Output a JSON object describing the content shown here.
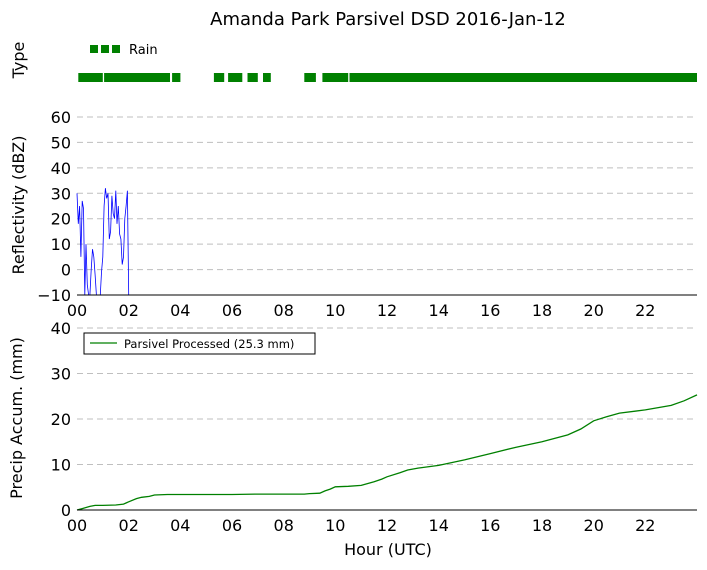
{
  "title": "Amanda Park Parsivel DSD 2016-Jan-12",
  "colors": {
    "rain": "#008000",
    "reflectivity": "#0000ff",
    "accum": "#008000",
    "grid": "#bfbfbf"
  },
  "chart_data": [
    {
      "type": "timeline",
      "ylabel": "Type",
      "legend": {
        "label": "Rain",
        "placement": "top-left"
      },
      "x_range": [
        0,
        24
      ],
      "segments": [
        [
          0.05,
          1.0
        ],
        [
          1.05,
          3.6
        ],
        [
          3.68,
          4.0
        ],
        [
          5.3,
          5.7
        ],
        [
          5.85,
          6.4
        ],
        [
          6.6,
          7.0
        ],
        [
          7.2,
          7.5
        ],
        [
          8.8,
          9.25
        ],
        [
          9.5,
          10.5
        ],
        [
          10.55,
          24.0
        ]
      ]
    },
    {
      "type": "line",
      "ylabel": "Reflectivity (dBZ)",
      "x_range": [
        0,
        24
      ],
      "ylim": [
        -10,
        60
      ],
      "yticks": [
        -10,
        0,
        10,
        20,
        30,
        40,
        50,
        60
      ],
      "series": [
        {
          "x_step_hours": 0.05,
          "values": [
            30,
            18,
            25,
            5,
            27,
            24,
            -10,
            10,
            -6,
            -10,
            -10,
            0,
            8,
            5,
            -2,
            -10,
            -10,
            -10,
            -10,
            -1,
            5,
            25,
            32,
            28,
            30,
            12,
            15,
            29,
            22,
            20,
            31,
            18,
            25,
            14,
            12,
            2,
            5,
            20,
            25,
            31,
            -10,
            -10,
            -10,
            -10,
            -10,
            -10,
            -10,
            -10,
            -10,
            -10,
            -10,
            -10,
            -10,
            -10,
            -10,
            -10,
            -10,
            -10,
            -10,
            -10,
            -10,
            -10,
            -10,
            -10,
            -10,
            -10,
            -10,
            -10,
            -10,
            -10,
            -10,
            -10,
            -10,
            -10,
            -10,
            -10,
            -10,
            -10,
            -10,
            -10,
            -10,
            -10,
            -10,
            -10,
            -10,
            -10,
            -10,
            -10,
            -10,
            -10,
            -10,
            -10,
            -10,
            -10,
            -10,
            -10,
            -10,
            -10,
            -10,
            -10,
            -10,
            -10,
            -10,
            -10,
            -10,
            -10,
            -10,
            -10,
            -10,
            -10,
            -10,
            -10,
            -10,
            -10,
            -10,
            -10,
            -10,
            -10,
            -10,
            -10,
            -10,
            -10,
            -10,
            -10,
            -10,
            -10,
            -10,
            -10,
            -10,
            -10,
            -10,
            -10,
            -10,
            -10,
            -10,
            -10,
            -10,
            -10,
            -10,
            -10,
            -10,
            -10,
            -10,
            -10,
            -10,
            -10,
            -10,
            -10,
            -10,
            -10,
            -10,
            -10,
            -10,
            -10,
            -10,
            -10,
            -10,
            -10,
            -10,
            -10,
            -10,
            -10,
            -10,
            -10,
            -10,
            -10,
            -10,
            -10,
            -10,
            -10,
            -10,
            -10,
            -10,
            -10,
            -10,
            -10,
            -10,
            -10,
            -10,
            -10,
            -10,
            -10,
            -10,
            -10,
            -10,
            -10,
            -10,
            -10,
            -10,
            -10,
            -10,
            -10,
            -10,
            -10,
            -10,
            -10,
            -10,
            -10,
            -10,
            -10,
            -10,
            -10,
            -10,
            -10,
            -10,
            -10,
            -10,
            -10,
            -10,
            -10,
            -10,
            -10,
            -10,
            -10,
            -10,
            -10,
            -10,
            -10,
            -10,
            -10,
            -10,
            -10,
            -10,
            -10,
            -10,
            -10,
            -10,
            -10,
            -10,
            -10,
            -10,
            -10,
            -10,
            -10,
            -10,
            -10,
            -10,
            -10,
            -10,
            -10,
            -10,
            -10,
            -10,
            -10,
            -10,
            -10,
            -10,
            -10,
            -10,
            -10,
            -10,
            -10,
            -10,
            -10,
            -10,
            -10,
            -10,
            -10,
            -10,
            -10,
            -10,
            -10,
            -10,
            -10,
            -10,
            -10,
            -10,
            -10,
            -10,
            -10,
            -10,
            -10,
            -10,
            -10,
            -10,
            -10,
            -10,
            -10,
            -10,
            -10,
            -10,
            -10,
            -10,
            -10,
            -10,
            -10,
            -10,
            -10,
            -10,
            -10,
            -10,
            -10,
            -10,
            -10,
            -10,
            -10,
            -10,
            -10,
            -10,
            -10,
            -10,
            -10,
            -10,
            -10,
            -10,
            -10,
            -10,
            -10,
            -10,
            -10,
            -10,
            -10,
            -10,
            -10,
            -10,
            -10,
            -10,
            -10,
            -10,
            -10,
            -10,
            -10,
            -10,
            -10,
            -10,
            -10,
            -10,
            -10,
            -10,
            -10,
            -10,
            -10,
            -10,
            -10,
            -10,
            -10,
            -10,
            -10,
            -10,
            -10,
            -10,
            -10,
            -10,
            -10,
            -10,
            -10,
            -10,
            -10,
            -10,
            -10,
            -10,
            -10,
            -10,
            -10,
            -10,
            -10,
            -10,
            -10,
            -10,
            -10,
            -10,
            -10,
            -10,
            -10,
            -10,
            -10,
            -10,
            -10,
            -10,
            -10,
            -10,
            -10,
            -10,
            -10,
            -10,
            -10,
            -10,
            -10,
            -10,
            -10,
            -10,
            -10,
            -10,
            -10,
            -10,
            -10,
            -10,
            -10,
            -10,
            -10,
            -10,
            -10,
            -10,
            -10,
            -10,
            -10,
            -10,
            -10,
            -10,
            -10,
            -10,
            -10,
            -10,
            -10,
            -10,
            -10,
            -10,
            -10,
            -10,
            -10,
            -10,
            -10,
            -10,
            -10,
            -10,
            -10,
            -10,
            -10,
            -10,
            -10,
            -10,
            -10,
            -10,
            -10,
            -10,
            -10,
            -10,
            -10,
            -10,
            -10,
            -10,
            -10,
            -10,
            -10,
            -10,
            -10,
            -10,
            -10,
            -10,
            -10,
            -10,
            -10,
            -10,
            -10,
            -10,
            -10,
            -10,
            -10,
            -10,
            -10,
            -10,
            -10,
            -10,
            -10,
            -10,
            -10,
            -10,
            -10,
            -10,
            -10,
            -10,
            -10,
            -10,
            -10,
            -10,
            -10,
            -10,
            -10,
            -10,
            -10,
            -10,
            -10,
            -10,
            -10,
            -10
          ]
        }
      ]
    },
    {
      "type": "line",
      "ylabel": "Precip Accum. (mm)",
      "xlabel": "Hour (UTC)",
      "x_range": [
        0,
        24
      ],
      "ylim": [
        0,
        40
      ],
      "yticks": [
        0,
        10,
        20,
        30,
        40
      ],
      "xticks": [
        "00",
        "02",
        "04",
        "06",
        "08",
        "10",
        "12",
        "14",
        "16",
        "18",
        "20",
        "22"
      ],
      "legend": {
        "label": "Parsivel Processed (25.3 mm)",
        "placement": "top-left"
      },
      "series": [
        {
          "name": "Parsivel Processed (25.3 mm)",
          "x": [
            0,
            0.2,
            0.5,
            0.7,
            1.0,
            1.5,
            1.8,
            2.0,
            2.3,
            2.5,
            2.8,
            3.0,
            3.5,
            4.0,
            5.0,
            6.0,
            7.0,
            8.0,
            8.8,
            9.0,
            9.4,
            9.6,
            9.8,
            10.0,
            10.5,
            11.0,
            11.5,
            11.8,
            12.0,
            12.5,
            12.8,
            13.2,
            14.0,
            15.0,
            16.0,
            17.0,
            18.0,
            19.0,
            19.5,
            20.0,
            20.5,
            21.0,
            22.0,
            23.0,
            23.5,
            24.0
          ],
          "y": [
            0,
            0.3,
            0.8,
            1.0,
            1.0,
            1.1,
            1.3,
            1.8,
            2.5,
            2.8,
            3.0,
            3.3,
            3.4,
            3.4,
            3.4,
            3.4,
            3.5,
            3.5,
            3.5,
            3.6,
            3.7,
            4.2,
            4.6,
            5.1,
            5.2,
            5.4,
            6.2,
            6.8,
            7.3,
            8.2,
            8.8,
            9.2,
            9.8,
            11.0,
            12.4,
            13.8,
            15.0,
            16.5,
            17.8,
            19.6,
            20.5,
            21.3,
            22.0,
            23.0,
            24.0,
            25.3
          ]
        }
      ]
    }
  ]
}
